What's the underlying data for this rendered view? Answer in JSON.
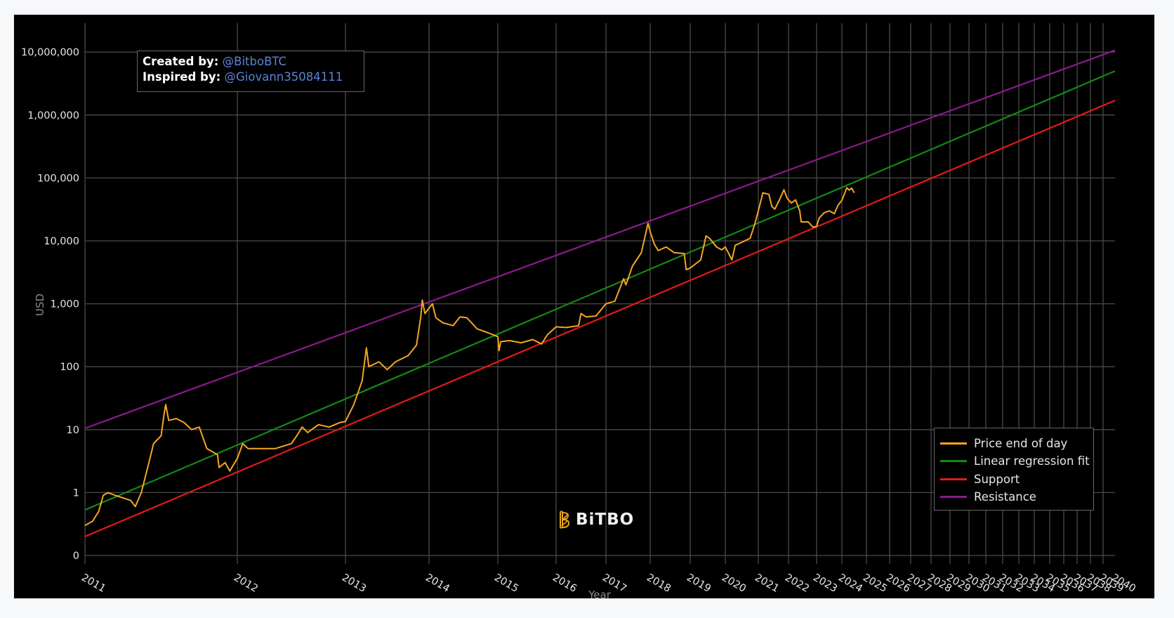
{
  "annotation": {
    "created_label": "Created by:",
    "created_value": "@BitboBTC",
    "inspired_label": "Inspired by:",
    "inspired_value": "@Giovann35084111"
  },
  "logo": {
    "icon": "bitbo-b-icon",
    "text": "BiTBO",
    "icon_color": "#e8a317"
  },
  "legend": {
    "items": [
      {
        "label": "Price end of day",
        "color": "#f5a623"
      },
      {
        "label": "Linear regression fit",
        "color": "#138a13"
      },
      {
        "label": "Support",
        "color": "#e31a1a"
      },
      {
        "label": "Resistance",
        "color": "#8b1a8b"
      }
    ]
  },
  "chart_data": {
    "type": "line",
    "title": "",
    "xlabel": "Year",
    "ylabel": "USD",
    "xscale": "log (days since genesis)",
    "yscale": "log",
    "grid": true,
    "legend_position": "bottom-right, inside plot",
    "y_ticks": [
      {
        "value": 0.1,
        "label": "0"
      },
      {
        "value": 1,
        "label": "1"
      },
      {
        "value": 10,
        "label": "10"
      },
      {
        "value": 100,
        "label": "100"
      },
      {
        "value": 1000,
        "label": "1,000"
      },
      {
        "value": 10000,
        "label": "10,000"
      },
      {
        "value": 100000,
        "label": "100,000"
      },
      {
        "value": 1000000,
        "label": "1,000,000"
      },
      {
        "value": 10000000,
        "label": "10,000,000"
      }
    ],
    "x_ticks": [
      "2011",
      "2012",
      "2013",
      "2014",
      "2015",
      "2016",
      "2017",
      "2018",
      "2019",
      "2020",
      "2021",
      "2022",
      "2023",
      "2024",
      "2025",
      "2026",
      "2027",
      "2028",
      "2029",
      "2030",
      "2031",
      "2032",
      "2033",
      "2034",
      "2035",
      "2036",
      "2037",
      "2038",
      "2039",
      "2040"
    ],
    "series": [
      {
        "name": "Price end of day",
        "color": "#f5a623",
        "points": [
          [
            2011.0,
            0.3
          ],
          [
            2011.05,
            0.35
          ],
          [
            2011.09,
            0.5
          ],
          [
            2011.12,
            0.9
          ],
          [
            2011.15,
            1.0
          ],
          [
            2011.2,
            0.9
          ],
          [
            2011.3,
            0.75
          ],
          [
            2011.33,
            0.6
          ],
          [
            2011.37,
            1.0
          ],
          [
            2011.42,
            3
          ],
          [
            2011.45,
            6
          ],
          [
            2011.5,
            8
          ],
          [
            2011.52,
            18
          ],
          [
            2011.53,
            25
          ],
          [
            2011.55,
            14
          ],
          [
            2011.6,
            15
          ],
          [
            2011.65,
            13
          ],
          [
            2011.7,
            10
          ],
          [
            2011.75,
            11
          ],
          [
            2011.8,
            5
          ],
          [
            2011.87,
            4
          ],
          [
            2011.88,
            2.5
          ],
          [
            2011.92,
            3
          ],
          [
            2011.95,
            2.2
          ],
          [
            2012.0,
            3.5
          ],
          [
            2012.05,
            6
          ],
          [
            2012.1,
            5
          ],
          [
            2012.2,
            5
          ],
          [
            2012.35,
            5
          ],
          [
            2012.5,
            6
          ],
          [
            2012.55,
            8
          ],
          [
            2012.6,
            11
          ],
          [
            2012.65,
            9
          ],
          [
            2012.75,
            12
          ],
          [
            2012.85,
            11
          ],
          [
            2012.95,
            13
          ],
          [
            2013.0,
            13.5
          ],
          [
            2013.1,
            25
          ],
          [
            2013.2,
            60
          ],
          [
            2013.25,
            200
          ],
          [
            2013.28,
            100
          ],
          [
            2013.4,
            120
          ],
          [
            2013.5,
            90
          ],
          [
            2013.6,
            120
          ],
          [
            2013.75,
            150
          ],
          [
            2013.85,
            220
          ],
          [
            2013.9,
            600
          ],
          [
            2013.92,
            1150
          ],
          [
            2013.95,
            700
          ],
          [
            2014.0,
            850
          ],
          [
            2014.05,
            1000
          ],
          [
            2014.1,
            600
          ],
          [
            2014.2,
            500
          ],
          [
            2014.35,
            450
          ],
          [
            2014.45,
            620
          ],
          [
            2014.55,
            600
          ],
          [
            2014.7,
            400
          ],
          [
            2014.85,
            350
          ],
          [
            2015.0,
            300
          ],
          [
            2015.02,
            180
          ],
          [
            2015.05,
            250
          ],
          [
            2015.2,
            260
          ],
          [
            2015.4,
            240
          ],
          [
            2015.6,
            270
          ],
          [
            2015.75,
            230
          ],
          [
            2015.85,
            320
          ],
          [
            2016.0,
            430
          ],
          [
            2016.2,
            420
          ],
          [
            2016.45,
            450
          ],
          [
            2016.5,
            700
          ],
          [
            2016.6,
            620
          ],
          [
            2016.8,
            640
          ],
          [
            2016.95,
            900
          ],
          [
            2017.0,
            1000
          ],
          [
            2017.2,
            1100
          ],
          [
            2017.4,
            2500
          ],
          [
            2017.45,
            2000
          ],
          [
            2017.6,
            4000
          ],
          [
            2017.8,
            6500
          ],
          [
            2017.95,
            19000
          ],
          [
            2018.0,
            14000
          ],
          [
            2018.1,
            9000
          ],
          [
            2018.2,
            7000
          ],
          [
            2018.4,
            8000
          ],
          [
            2018.6,
            6500
          ],
          [
            2018.85,
            6300
          ],
          [
            2018.9,
            3500
          ],
          [
            2019.0,
            3700
          ],
          [
            2019.3,
            5000
          ],
          [
            2019.45,
            12000
          ],
          [
            2019.55,
            11000
          ],
          [
            2019.75,
            8000
          ],
          [
            2019.9,
            7200
          ],
          [
            2020.0,
            8000
          ],
          [
            2020.2,
            5000
          ],
          [
            2020.3,
            8500
          ],
          [
            2020.5,
            9500
          ],
          [
            2020.75,
            11000
          ],
          [
            2020.9,
            19000
          ],
          [
            2021.0,
            30000
          ],
          [
            2021.15,
            58000
          ],
          [
            2021.35,
            55000
          ],
          [
            2021.45,
            35000
          ],
          [
            2021.55,
            32000
          ],
          [
            2021.7,
            45000
          ],
          [
            2021.85,
            65000
          ],
          [
            2021.95,
            48000
          ],
          [
            2022.1,
            40000
          ],
          [
            2022.25,
            45000
          ],
          [
            2022.4,
            30000
          ],
          [
            2022.45,
            20000
          ],
          [
            2022.7,
            20000
          ],
          [
            2022.87,
            16500
          ],
          [
            2023.0,
            17000
          ],
          [
            2023.1,
            23000
          ],
          [
            2023.3,
            28000
          ],
          [
            2023.5,
            30000
          ],
          [
            2023.7,
            27000
          ],
          [
            2023.85,
            37000
          ],
          [
            2024.0,
            44000
          ],
          [
            2024.2,
            70000
          ],
          [
            2024.3,
            64000
          ],
          [
            2024.4,
            69000
          ],
          [
            2024.5,
            58000
          ]
        ]
      },
      {
        "name": "Linear regression fit",
        "color": "#138a13",
        "start": [
          2011.0,
          0.53
        ],
        "end": [
          2040.0,
          5000000
        ]
      },
      {
        "name": "Support",
        "color": "#e31a1a",
        "start": [
          2011.0,
          0.2
        ],
        "end": [
          2040.0,
          1700000
        ]
      },
      {
        "name": "Resistance",
        "color": "#8b1a8b",
        "start": [
          2011.0,
          10.5
        ],
        "end": [
          2040.0,
          10700000
        ]
      }
    ]
  }
}
